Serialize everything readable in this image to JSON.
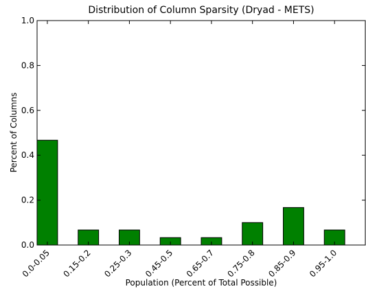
{
  "chart_data": {
    "type": "bar",
    "title": "Distribution of Column Sparsity (Dryad - METS)",
    "xlabel": "Population (Percent of Total Possible)",
    "ylabel": "Percent of Columns",
    "categories": [
      "0.0-0.05",
      "0.15-0.2",
      "0.25-0.3",
      "0.45-0.5",
      "0.65-0.7",
      "0.75-0.8",
      "0.85-0.9",
      "0.95-1.0"
    ],
    "values": [
      0.467,
      0.067,
      0.067,
      0.033,
      0.033,
      0.1,
      0.167,
      0.067
    ],
    "color": "#008000",
    "ylim": [
      0,
      1
    ],
    "yticks": [
      {
        "value": 0,
        "label": "0.0"
      },
      0.2,
      0.4,
      0.6,
      0.8,
      {
        "value": 1,
        "label": "1.0"
      }
    ]
  }
}
